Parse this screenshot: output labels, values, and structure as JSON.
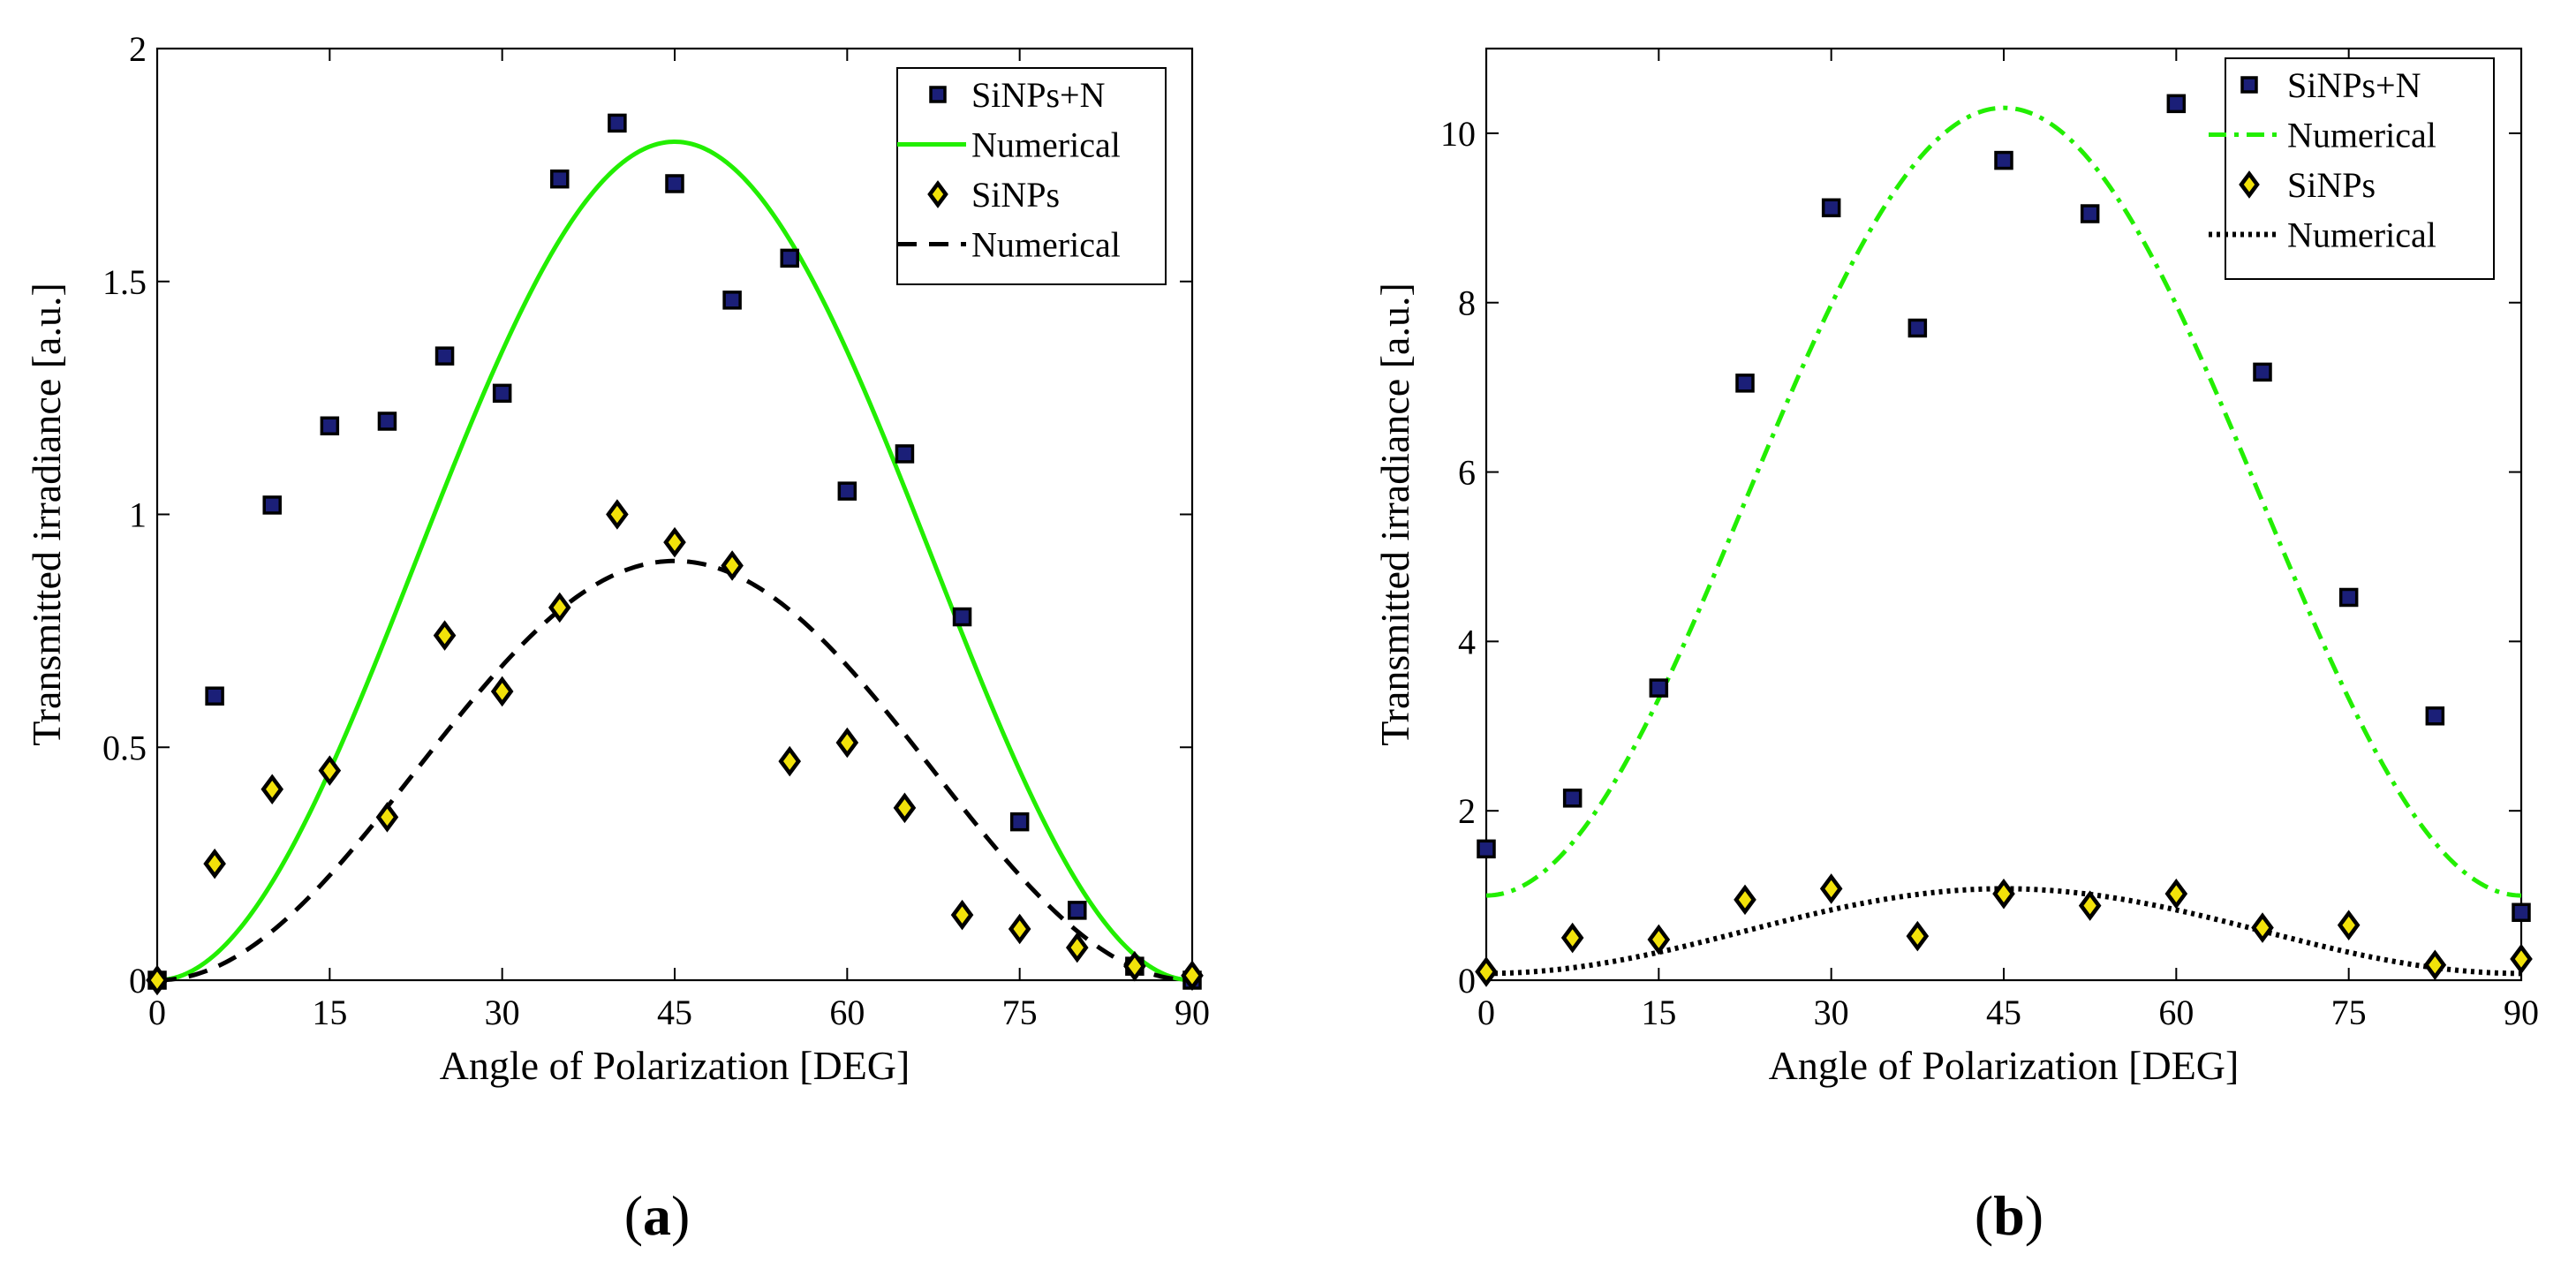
{
  "colors": {
    "green": "#22ee00",
    "black": "#000000",
    "square_fill": "#1b1f78",
    "diamond_fill": "#f2e20a"
  },
  "chart_data": [
    {
      "type": "scatter",
      "panel_label": "(a)",
      "panel_letter": "a",
      "xlabel": "Angle of Polarization [DEG]",
      "ylabel": "Transmitted irradiance [a.u.]",
      "xlim": [
        0,
        90
      ],
      "ylim": [
        0,
        2
      ],
      "xticks": [
        0,
        15,
        30,
        45,
        60,
        75,
        90
      ],
      "yticks": [
        0,
        0.5,
        1,
        1.5,
        2
      ],
      "ytick_labels": [
        "0",
        "0.5",
        "1",
        "1.5",
        "2"
      ],
      "legend_position": "top-right",
      "series": [
        {
          "name": "SiNPs+N",
          "kind": "scatter",
          "marker": "square",
          "x": [
            0,
            5,
            10,
            15,
            20,
            25,
            30,
            35,
            40,
            45,
            50,
            55,
            60,
            65,
            70,
            75,
            80,
            85,
            90
          ],
          "y": [
            0.0,
            0.61,
            1.02,
            1.19,
            1.2,
            1.34,
            1.26,
            1.72,
            1.84,
            1.71,
            1.46,
            1.55,
            1.05,
            1.13,
            0.78,
            0.34,
            0.15,
            0.03,
            0.0
          ]
        },
        {
          "name": "Numerical",
          "kind": "line",
          "style": "solid",
          "color_key": "green",
          "formula": "A*sin^2(2x)",
          "amplitude": 1.8,
          "offset": 0
        },
        {
          "name": "SiNPs",
          "kind": "scatter",
          "marker": "diamond",
          "x": [
            0,
            5,
            10,
            15,
            20,
            25,
            30,
            35,
            40,
            45,
            50,
            55,
            60,
            65,
            70,
            75,
            80,
            85,
            90
          ],
          "y": [
            0.0,
            0.25,
            0.41,
            0.45,
            0.35,
            0.74,
            0.62,
            0.8,
            1.0,
            0.94,
            0.89,
            0.47,
            0.51,
            0.37,
            0.14,
            0.11,
            0.07,
            0.03,
            0.01
          ]
        },
        {
          "name": "Numerical",
          "kind": "line",
          "style": "dashed",
          "color_key": "black",
          "formula": "A*sin^2(2x)",
          "amplitude": 0.9,
          "offset": 0
        }
      ]
    },
    {
      "type": "scatter",
      "panel_label": "(b)",
      "panel_letter": "b",
      "xlabel": "Angle of Polarization [DEG]",
      "ylabel": "Transmitted irradiance [a.u.]",
      "xlim": [
        0,
        90
      ],
      "ylim": [
        0,
        11
      ],
      "xticks": [
        0,
        15,
        30,
        45,
        60,
        75,
        90
      ],
      "yticks": [
        0,
        2,
        4,
        6,
        8,
        10
      ],
      "ytick_labels": [
        "0",
        "2",
        "4",
        "6",
        "8",
        "10"
      ],
      "legend_position": "top-right",
      "series": [
        {
          "name": "SiNPs+N",
          "kind": "scatter",
          "marker": "square",
          "x": [
            0,
            7.5,
            15,
            22.5,
            30,
            37.5,
            45,
            52.5,
            60,
            67.5,
            75,
            82.5,
            90
          ],
          "y": [
            1.55,
            2.15,
            3.45,
            7.05,
            9.12,
            7.7,
            9.68,
            9.05,
            10.35,
            7.18,
            4.52,
            3.12,
            0.8
          ]
        },
        {
          "name": "Numerical",
          "kind": "line",
          "style": "dashdot",
          "color_key": "green",
          "formula": "offset + A*sin^2(2x)",
          "amplitude": 9.3,
          "offset": 1.0
        },
        {
          "name": "SiNPs",
          "kind": "scatter",
          "marker": "diamond",
          "x": [
            0,
            7.5,
            15,
            22.5,
            30,
            37.5,
            45,
            52.5,
            60,
            67.5,
            75,
            82.5,
            90
          ],
          "y": [
            0.1,
            0.5,
            0.48,
            0.95,
            1.08,
            0.52,
            1.02,
            0.88,
            1.02,
            0.62,
            0.65,
            0.18,
            0.25
          ]
        },
        {
          "name": "Numerical",
          "kind": "line",
          "style": "dotted",
          "color_key": "black",
          "formula": "offset + A*sin^2(2x)",
          "amplitude": 1.0,
          "offset": 0.08
        }
      ]
    }
  ]
}
